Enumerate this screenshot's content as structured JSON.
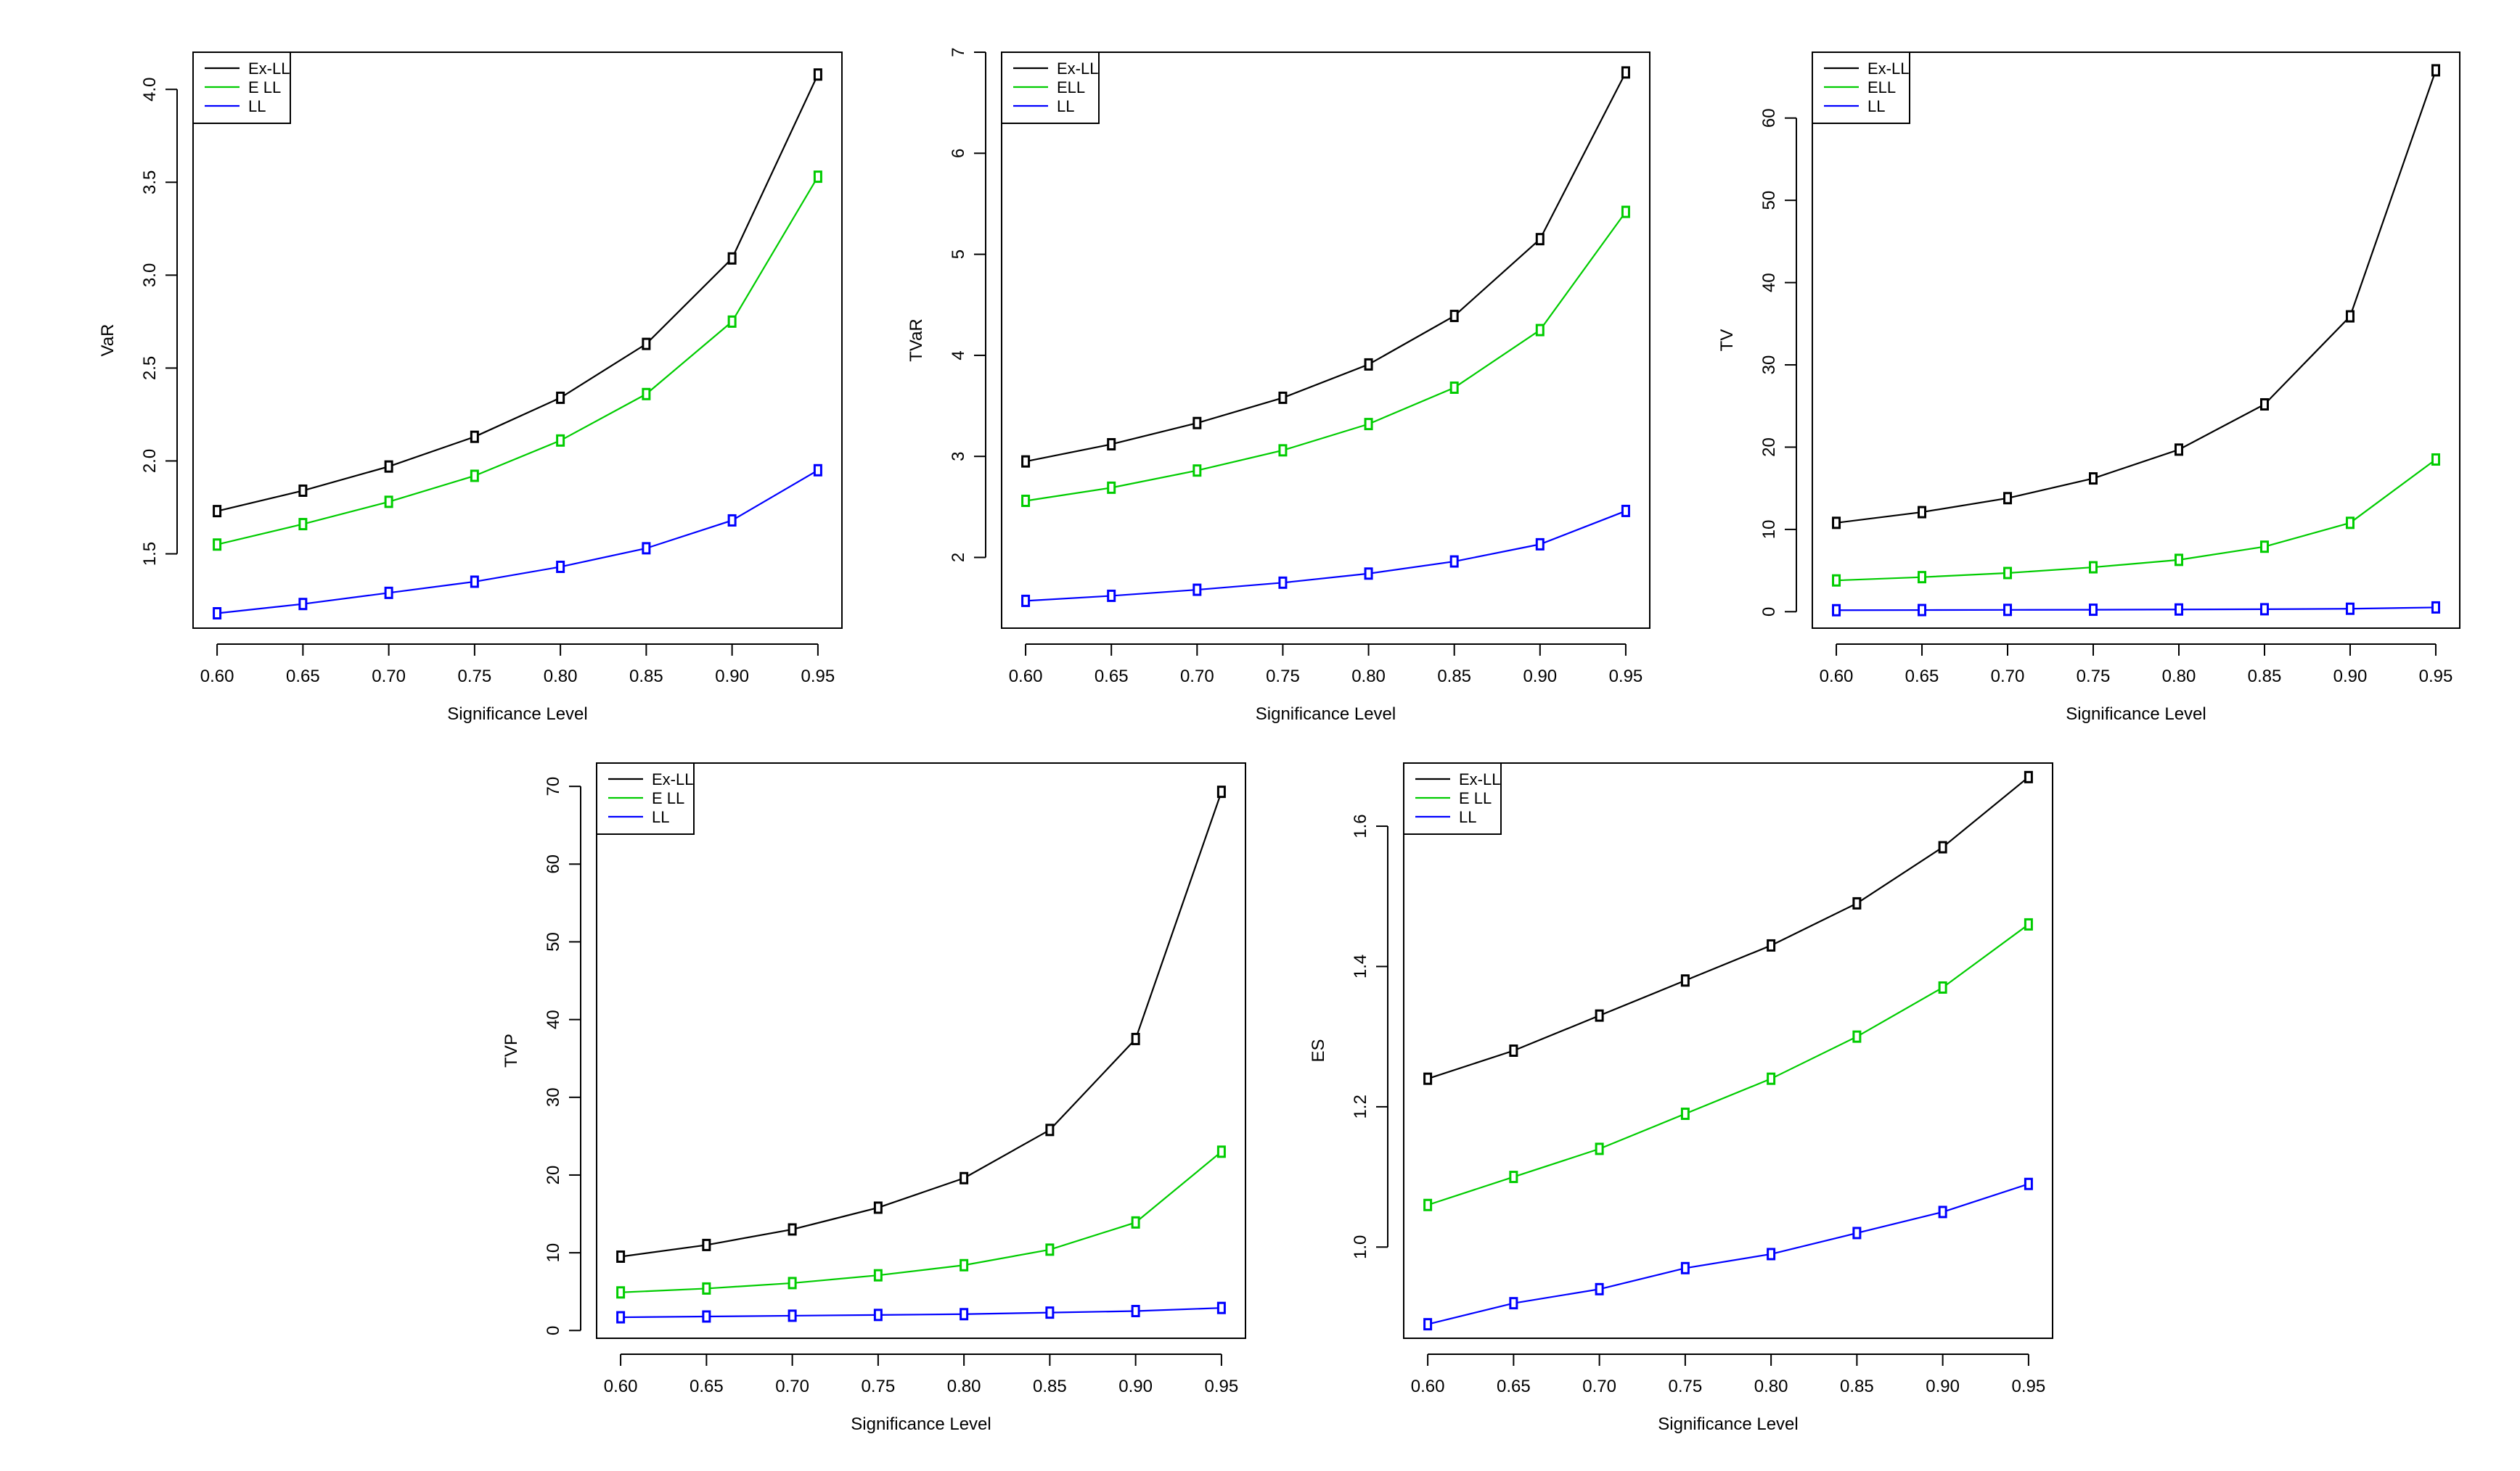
{
  "figure": {
    "colors": {
      "Ex-LL": "#000000",
      "E LL": "#00cc00",
      "ELL": "#00cc00",
      "LL": "#0000ff"
    }
  },
  "chart_data": [
    {
      "type": "line",
      "xlabel": "Significance Level",
      "ylabel": "VaR",
      "x": [
        0.6,
        0.65,
        0.7,
        0.75,
        0.8,
        0.85,
        0.9,
        0.95
      ],
      "xticks": [
        "0.60",
        "0.65",
        "0.70",
        "0.75",
        "0.80",
        "0.85",
        "0.90",
        "0.95"
      ],
      "yticks": [
        "1.5",
        "2.0",
        "2.5",
        "3.0",
        "3.5",
        "4.0"
      ],
      "ylim": [
        1.1,
        4.2
      ],
      "legend": "top-left",
      "series": [
        {
          "name": "Ex-LL",
          "color": "#000000",
          "values": [
            1.73,
            1.84,
            1.97,
            2.13,
            2.34,
            2.63,
            3.09,
            4.08
          ]
        },
        {
          "name": "E LL",
          "color": "#00cc00",
          "values": [
            1.55,
            1.66,
            1.78,
            1.92,
            2.11,
            2.36,
            2.75,
            3.53
          ]
        },
        {
          "name": "LL",
          "color": "#0000ff",
          "values": [
            1.18,
            1.23,
            1.29,
            1.35,
            1.43,
            1.53,
            1.68,
            1.95
          ]
        }
      ]
    },
    {
      "type": "line",
      "xlabel": "Significance Level",
      "ylabel": "TVaR",
      "x": [
        0.6,
        0.65,
        0.7,
        0.75,
        0.8,
        0.85,
        0.9,
        0.95
      ],
      "xticks": [
        "0.60",
        "0.65",
        "0.70",
        "0.75",
        "0.80",
        "0.85",
        "0.90",
        "0.95"
      ],
      "yticks": [
        "2",
        "3",
        "4",
        "5",
        "6",
        "7"
      ],
      "ylim": [
        1.3,
        7.0
      ],
      "legend": "top-left",
      "series": [
        {
          "name": "Ex-LL",
          "color": "#000000",
          "values": [
            2.95,
            3.12,
            3.33,
            3.58,
            3.91,
            4.39,
            5.15,
            6.8
          ]
        },
        {
          "name": "ELL",
          "color": "#00cc00",
          "values": [
            2.56,
            2.69,
            2.86,
            3.06,
            3.32,
            3.68,
            4.25,
            5.42
          ]
        },
        {
          "name": "LL",
          "color": "#0000ff",
          "values": [
            1.57,
            1.62,
            1.68,
            1.75,
            1.84,
            1.96,
            2.13,
            2.46
          ]
        }
      ]
    },
    {
      "type": "line",
      "xlabel": "Significance Level",
      "ylabel": "TV",
      "x": [
        0.6,
        0.65,
        0.7,
        0.75,
        0.8,
        0.85,
        0.9,
        0.95
      ],
      "xticks": [
        "0.60",
        "0.65",
        "0.70",
        "0.75",
        "0.80",
        "0.85",
        "0.90",
        "0.95"
      ],
      "yticks": [
        "0",
        "10",
        "20",
        "30",
        "40",
        "50",
        "60"
      ],
      "ylim": [
        -2,
        68
      ],
      "legend": "top-left",
      "series": [
        {
          "name": "Ex-LL",
          "color": "#000000",
          "values": [
            10.8,
            12.1,
            13.8,
            16.2,
            19.7,
            25.2,
            35.9,
            65.8
          ]
        },
        {
          "name": "ELL",
          "color": "#00cc00",
          "values": [
            3.8,
            4.2,
            4.7,
            5.4,
            6.3,
            7.9,
            10.8,
            18.5
          ]
        },
        {
          "name": "LL",
          "color": "#0000ff",
          "values": [
            0.18,
            0.2,
            0.22,
            0.24,
            0.27,
            0.3,
            0.36,
            0.52
          ]
        }
      ]
    },
    {
      "type": "line",
      "xlabel": "Significance Level",
      "ylabel": "TVP",
      "x": [
        0.6,
        0.65,
        0.7,
        0.75,
        0.8,
        0.85,
        0.9,
        0.95
      ],
      "xticks": [
        "0.60",
        "0.65",
        "0.70",
        "0.75",
        "0.80",
        "0.85",
        "0.90",
        "0.95"
      ],
      "yticks": [
        "0",
        "10",
        "20",
        "30",
        "40",
        "50",
        "60",
        "70"
      ],
      "ylim": [
        -1,
        73
      ],
      "legend": "top-left",
      "series": [
        {
          "name": "Ex-LL",
          "color": "#000000",
          "values": [
            9.5,
            11.0,
            13.0,
            15.8,
            19.6,
            25.8,
            37.5,
            69.3
          ]
        },
        {
          "name": "E LL",
          "color": "#00cc00",
          "values": [
            4.9,
            5.4,
            6.1,
            7.1,
            8.4,
            10.4,
            13.9,
            23.0
          ]
        },
        {
          "name": "LL",
          "color": "#0000ff",
          "values": [
            1.7,
            1.8,
            1.9,
            2.0,
            2.1,
            2.3,
            2.5,
            2.9
          ]
        }
      ]
    },
    {
      "type": "line",
      "xlabel": "Significance Level",
      "ylabel": "ES",
      "x": [
        0.6,
        0.65,
        0.7,
        0.75,
        0.8,
        0.85,
        0.9,
        0.95
      ],
      "xticks": [
        "0.60",
        "0.65",
        "0.70",
        "0.75",
        "0.80",
        "0.85",
        "0.90",
        "0.95"
      ],
      "yticks": [
        "1.0",
        "1.2",
        "1.4",
        "1.6"
      ],
      "ylim": [
        0.87,
        1.69
      ],
      "legend": "top-left",
      "series": [
        {
          "name": "Ex-LL",
          "color": "#000000",
          "values": [
            1.24,
            1.28,
            1.33,
            1.38,
            1.43,
            1.49,
            1.57,
            1.67
          ]
        },
        {
          "name": "E LL",
          "color": "#00cc00",
          "values": [
            1.06,
            1.1,
            1.14,
            1.19,
            1.24,
            1.3,
            1.37,
            1.46
          ]
        },
        {
          "name": "LL",
          "color": "#0000ff",
          "values": [
            0.89,
            0.92,
            0.94,
            0.97,
            0.99,
            1.02,
            1.05,
            1.09
          ]
        }
      ]
    }
  ]
}
